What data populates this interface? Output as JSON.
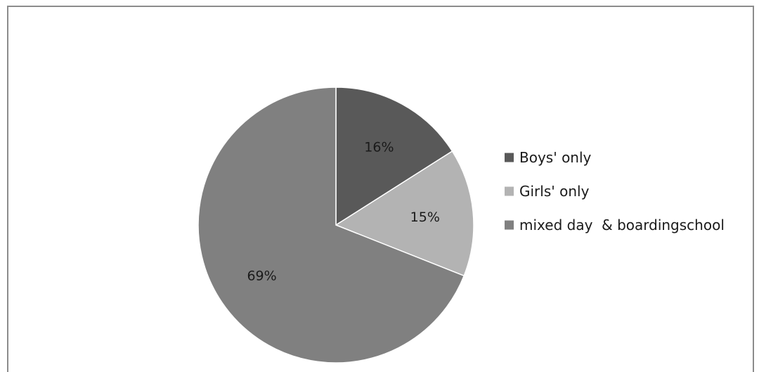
{
  "chart_data": {
    "type": "pie",
    "title": "",
    "categories": [
      "Boys' only",
      "Girls' only",
      "mixed day  & boardingschool"
    ],
    "values": [
      16,
      15,
      69
    ],
    "data_labels": [
      "16%",
      "15%",
      "69%"
    ],
    "colors": [
      "#595959",
      "#b3b3b3",
      "#808080"
    ],
    "legend_position": "right",
    "start_angle": "12 o'clock",
    "direction": "clockwise"
  }
}
